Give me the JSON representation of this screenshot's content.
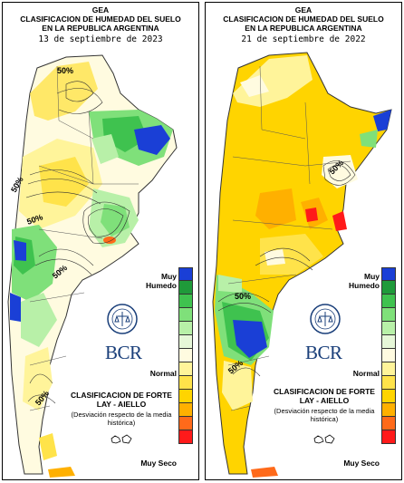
{
  "panels": [
    {
      "title": "GEA",
      "subtitle": "CLASIFICACION DE HUMEDAD DEL SUELO EN LA REPUBLICA ARGENTINA",
      "date": "13 de septiembre de 2023",
      "contour_labels": [
        "50%",
        "50%",
        "50%",
        "50%",
        "50%"
      ],
      "logo": "BCR",
      "legend": {
        "top": "Muy Humedo",
        "mid": "Normal",
        "bottom": "Muy Seco"
      },
      "classification": "CLASIFICACION DE FORTE LAY - AIELLO",
      "note": "(Desviación respecto de la media histórica)"
    },
    {
      "title": "GEA",
      "subtitle": "CLASIFICACION DE HUMEDAD DEL SUELO EN LA REPUBLICA ARGENTINA",
      "date": "21 de septiembre de 2022",
      "contour_labels": [
        "50%",
        "50%",
        "50%"
      ],
      "logo": "BCR",
      "legend": {
        "top": "Muy Humedo",
        "mid": "Normal",
        "bottom": "Muy Seco"
      },
      "classification": "CLASIFICACION DE FORTE LAY - AIELLO",
      "note": "(Desviación respecto de la media histórica)"
    }
  ],
  "legend_scale": [
    "#1a3fd6",
    "#1f9a3a",
    "#3fc24f",
    "#7fe07a",
    "#b8f0a8",
    "#e6f7d8",
    "#fffbe0",
    "#fff49a",
    "#ffe34a",
    "#ffd400",
    "#ffb000",
    "#ff6a1a",
    "#ff1a1a"
  ],
  "colors": {
    "very_wet": "#1a3fd6",
    "wet": "#3fc24f",
    "normal": "#fffbe0",
    "dry": "#ffd400",
    "very_dry": "#ff1a1a"
  },
  "icons": [
    "bcr-seal-icon",
    "malvinas-islands-icon"
  ]
}
